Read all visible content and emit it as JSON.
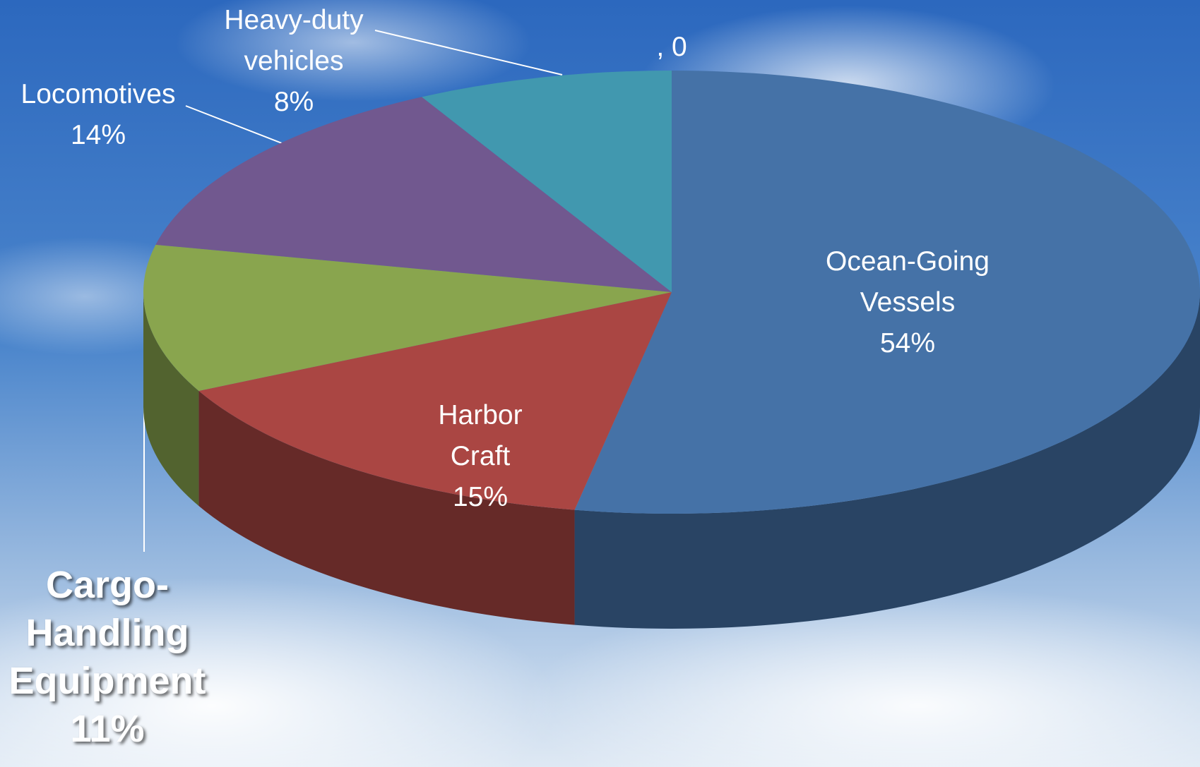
{
  "chart_data": {
    "type": "pie",
    "categories": [
      "Ocean-Going Vessels",
      "Harbor Craft",
      "Cargo-Handling Equipment",
      "Locomotives",
      "Heavy-duty vehicles",
      null
    ],
    "values": [
      54,
      15,
      11,
      14,
      8,
      0
    ],
    "value_labels": [
      "54%",
      "15%",
      "11%",
      "14%",
      "8%",
      ", 0"
    ],
    "colors": [
      "#4572a7",
      "#aa4643",
      "#89a54e",
      "#71588f",
      "#4198af",
      "#db843d"
    ],
    "three_d": true
  }
}
